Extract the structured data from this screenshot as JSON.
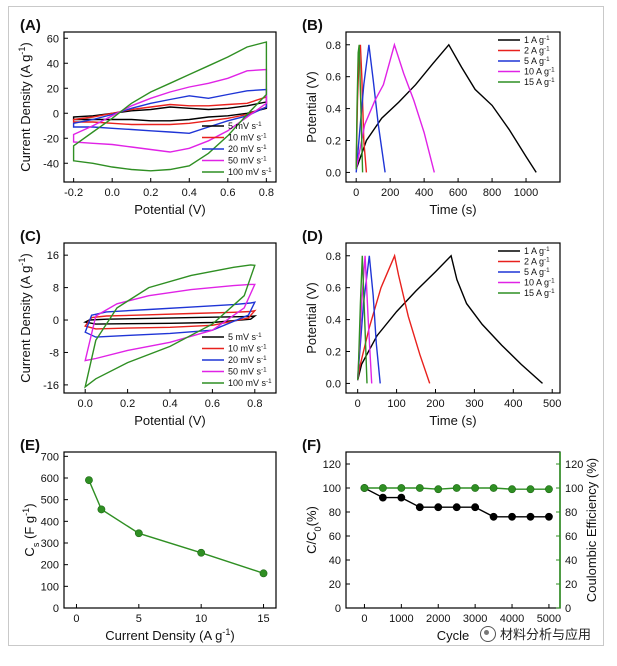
{
  "watermark": "材料分析与应用",
  "chart_data": [
    {
      "id": "A",
      "panel_label": "(A)",
      "type": "line",
      "subtype": "cv",
      "xlabel": "Potential (V)",
      "ylabel": "Current Density (A g-1)",
      "xlim": [
        -0.25,
        0.85
      ],
      "ylim": [
        -55,
        65
      ],
      "xticks": [
        -0.2,
        0.0,
        0.2,
        0.4,
        0.6,
        0.8
      ],
      "yticks": [
        -40,
        -20,
        0,
        20,
        40,
        60
      ],
      "xtick_labels": [
        "-0.2",
        "0.0",
        "0.2",
        "0.4",
        "0.6",
        "0.8"
      ],
      "ytick_labels": [
        "-40",
        "-20",
        "0",
        "20",
        "40",
        "60"
      ],
      "legend": [
        {
          "label": "5 mV s-1",
          "color": "#000000"
        },
        {
          "label": "10 mV s-1",
          "color": "#e8211d"
        },
        {
          "label": "20 mV s-1",
          "color": "#1f35d6"
        },
        {
          "label": "50 mV s-1",
          "color": "#e023e6"
        },
        {
          "label": "100 mV s-1",
          "color": "#2f8f23"
        }
      ],
      "series": [
        {
          "name": "5 mV s-1",
          "color": "#000000",
          "x": [
            -0.2,
            -0.1,
            0.0,
            0.1,
            0.2,
            0.3,
            0.4,
            0.5,
            0.6,
            0.7,
            0.8,
            0.8,
            0.7,
            0.6,
            0.5,
            0.4,
            0.3,
            0.2,
            0.1,
            0.0,
            -0.1,
            -0.2
          ],
          "y": [
            -3,
            -2,
            0,
            2,
            3,
            5,
            4,
            3,
            4,
            6,
            9,
            4,
            0,
            -2,
            -3,
            -5,
            -6,
            -6,
            -5,
            -5,
            -5,
            -5
          ]
        },
        {
          "name": "10 mV s-1",
          "color": "#e8211d",
          "x": [
            -0.2,
            -0.1,
            0.0,
            0.1,
            0.2,
            0.3,
            0.4,
            0.5,
            0.6,
            0.7,
            0.8,
            0.8,
            0.7,
            0.6,
            0.5,
            0.4,
            0.3,
            0.2,
            0.1,
            0.0,
            -0.1,
            -0.2
          ],
          "y": [
            -5,
            -3,
            0,
            3,
            5,
            7,
            6,
            6,
            7,
            8,
            13,
            5,
            -1,
            -4,
            -6,
            -8,
            -9,
            -9,
            -9,
            -8,
            -7,
            -7
          ]
        },
        {
          "name": "20 mV s-1",
          "color": "#1f35d6",
          "x": [
            -0.2,
            -0.1,
            0.0,
            0.1,
            0.2,
            0.3,
            0.4,
            0.5,
            0.6,
            0.7,
            0.8,
            0.8,
            0.7,
            0.6,
            0.5,
            0.4,
            0.3,
            0.2,
            0.1,
            0.0,
            -0.1,
            -0.2
          ],
          "y": [
            -8,
            -5,
            -1,
            4,
            8,
            11,
            14,
            12,
            15,
            18,
            19,
            5,
            -2,
            -6,
            -11,
            -16,
            -15,
            -14,
            -13,
            -12,
            -11,
            -11
          ]
        },
        {
          "name": "50 mV s-1",
          "color": "#e023e6",
          "x": [
            -0.2,
            -0.1,
            0.0,
            0.1,
            0.2,
            0.3,
            0.4,
            0.5,
            0.6,
            0.7,
            0.8,
            0.8,
            0.7,
            0.6,
            0.5,
            0.4,
            0.3,
            0.2,
            0.1,
            0.0,
            -0.1,
            -0.2
          ],
          "y": [
            -17,
            -10,
            -2,
            6,
            12,
            17,
            21,
            24,
            28,
            34,
            35,
            8,
            -3,
            -14,
            -22,
            -28,
            -31,
            -29,
            -27,
            -25,
            -24,
            -23
          ]
        },
        {
          "name": "100 mV s-1",
          "color": "#2f8f23",
          "x": [
            -0.2,
            -0.1,
            0.0,
            0.1,
            0.2,
            0.3,
            0.4,
            0.5,
            0.6,
            0.7,
            0.8,
            0.8,
            0.7,
            0.6,
            0.5,
            0.4,
            0.3,
            0.2,
            0.1,
            0.0,
            -0.1,
            -0.2
          ],
          "y": [
            -26,
            -15,
            -4,
            8,
            17,
            24,
            31,
            38,
            45,
            53,
            57,
            15,
            -1,
            -18,
            -32,
            -42,
            -45,
            -46,
            -45,
            -43,
            -40,
            -38
          ]
        }
      ]
    },
    {
      "id": "B",
      "panel_label": "(B)",
      "type": "line",
      "subtype": "gcd",
      "xlabel": "Time (s)",
      "ylabel": "Potential (V)",
      "xlim": [
        -60,
        1200
      ],
      "ylim": [
        -0.06,
        0.88
      ],
      "xticks": [
        0,
        200,
        400,
        600,
        800,
        1000
      ],
      "yticks": [
        0.0,
        0.2,
        0.4,
        0.6,
        0.8
      ],
      "xtick_labels": [
        "0",
        "200",
        "400",
        "600",
        "800",
        "1000"
      ],
      "ytick_labels": [
        "0.0",
        "0.2",
        "0.4",
        "0.6",
        "0.8"
      ],
      "legend": [
        {
          "label": "1 A g-1",
          "color": "#000000"
        },
        {
          "label": "2 A g-1",
          "color": "#e8211d"
        },
        {
          "label": "5 A g-1",
          "color": "#1f35d6"
        },
        {
          "label": "10 A g-1",
          "color": "#e023e6"
        },
        {
          "label": "15 A g-1",
          "color": "#2f8f23"
        }
      ],
      "series": [
        {
          "name": "1 A g-1",
          "color": "#000000",
          "x": [
            0,
            60,
            150,
            250,
            350,
            450,
            545,
            620,
            700,
            800,
            900,
            1000,
            1060
          ],
          "y": [
            0.02,
            0.2,
            0.34,
            0.44,
            0.55,
            0.68,
            0.8,
            0.66,
            0.52,
            0.42,
            0.27,
            0.1,
            0.0
          ]
        },
        {
          "name": "2 A g-1",
          "color": "#e8211d",
          "x": [
            0,
            8,
            18,
            25,
            33,
            45,
            60
          ],
          "y": [
            0.02,
            0.45,
            0.75,
            0.8,
            0.6,
            0.2,
            0.0
          ]
        },
        {
          "name": "5 A g-1",
          "color": "#1f35d6",
          "x": [
            0,
            20,
            45,
            75,
            100,
            130,
            170
          ],
          "y": [
            0.0,
            0.25,
            0.55,
            0.8,
            0.58,
            0.3,
            0.0
          ]
        },
        {
          "name": "10 A g-1",
          "color": "#e023e6",
          "x": [
            0,
            50,
            110,
            160,
            225,
            280,
            340,
            400,
            460
          ],
          "y": [
            0.02,
            0.3,
            0.45,
            0.55,
            0.8,
            0.62,
            0.45,
            0.25,
            0.0
          ]
        },
        {
          "name": "15 A g-1",
          "color": "#2f8f23",
          "x": [
            0,
            5,
            12,
            18,
            28,
            38
          ],
          "y": [
            0.02,
            0.4,
            0.75,
            0.8,
            0.4,
            0.0
          ]
        }
      ]
    },
    {
      "id": "C",
      "panel_label": "(C)",
      "type": "line",
      "subtype": "cv",
      "xlabel": "Potential (V)",
      "ylabel": "Current Density (A g-1)",
      "xlim": [
        -0.1,
        0.9
      ],
      "ylim": [
        -18,
        19
      ],
      "xticks": [
        0.0,
        0.2,
        0.4,
        0.6,
        0.8
      ],
      "yticks": [
        -16,
        -8,
        0,
        8,
        16
      ],
      "xtick_labels": [
        "0.0",
        "0.2",
        "0.4",
        "0.6",
        "0.8"
      ],
      "ytick_labels": [
        "-16",
        "-8",
        "0",
        "8",
        "16"
      ],
      "legend": [
        {
          "label": "5 mV s-1",
          "color": "#000000"
        },
        {
          "label": "10 mV s-1",
          "color": "#e8211d"
        },
        {
          "label": "20 mV s-1",
          "color": "#1f35d6"
        },
        {
          "label": "50 mV s-1",
          "color": "#e023e6"
        },
        {
          "label": "100 mV s-1",
          "color": "#2f8f23"
        }
      ],
      "series": [
        {
          "name": "5 mV s-1",
          "color": "#000000",
          "x": [
            0.0,
            0.02,
            0.1,
            0.3,
            0.5,
            0.7,
            0.78,
            0.8,
            0.78,
            0.6,
            0.4,
            0.2,
            0.05,
            0.0
          ],
          "y": [
            -0.5,
            0.0,
            0.2,
            0.4,
            0.6,
            0.8,
            0.9,
            1.0,
            0.2,
            -0.6,
            -0.8,
            -0.9,
            -1.0,
            -0.5
          ]
        },
        {
          "name": "10 mV s-1",
          "color": "#e8211d",
          "x": [
            0.0,
            0.03,
            0.1,
            0.3,
            0.5,
            0.7,
            0.78,
            0.8,
            0.77,
            0.6,
            0.4,
            0.2,
            0.05,
            0.0
          ],
          "y": [
            -1.5,
            0.6,
            1.0,
            1.3,
            1.6,
            1.9,
            2.1,
            2.3,
            0.5,
            -1.3,
            -1.8,
            -2.0,
            -2.2,
            -1.5
          ]
        },
        {
          "name": "20 mV s-1",
          "color": "#1f35d6",
          "x": [
            0.0,
            0.03,
            0.1,
            0.3,
            0.5,
            0.7,
            0.78,
            0.8,
            0.77,
            0.6,
            0.4,
            0.2,
            0.05,
            0.0
          ],
          "y": [
            -3.0,
            1.2,
            2.0,
            2.6,
            3.2,
            3.8,
            4.2,
            4.4,
            1.2,
            -2.5,
            -3.3,
            -3.8,
            -4.2,
            -3.0
          ]
        },
        {
          "name": "50 mV s-1",
          "color": "#e023e6",
          "x": [
            0.0,
            0.05,
            0.15,
            0.3,
            0.5,
            0.7,
            0.78,
            0.8,
            0.75,
            0.6,
            0.4,
            0.2,
            0.05,
            0.0
          ],
          "y": [
            -10.0,
            1.0,
            4.0,
            6.0,
            7.5,
            8.5,
            8.8,
            8.8,
            3.0,
            -2.5,
            -5.5,
            -7.5,
            -9.5,
            -10.0
          ]
        },
        {
          "name": "100 mV s-1",
          "color": "#2f8f23",
          "x": [
            0.0,
            0.05,
            0.15,
            0.3,
            0.5,
            0.7,
            0.78,
            0.8,
            0.75,
            0.6,
            0.4,
            0.2,
            0.05,
            0.0
          ],
          "y": [
            -16.5,
            -5.0,
            3.0,
            8.0,
            11.0,
            13.0,
            13.6,
            13.5,
            6.0,
            -1.0,
            -6.5,
            -10.5,
            -14.5,
            -16.5
          ]
        }
      ]
    },
    {
      "id": "D",
      "panel_label": "(D)",
      "type": "line",
      "subtype": "gcd",
      "xlabel": "Time (s)",
      "ylabel": "Potential (V)",
      "xlim": [
        -30,
        520
      ],
      "ylim": [
        -0.06,
        0.88
      ],
      "xticks": [
        0,
        100,
        200,
        300,
        400,
        500
      ],
      "yticks": [
        0.0,
        0.2,
        0.4,
        0.6,
        0.8
      ],
      "xtick_labels": [
        "0",
        "100",
        "200",
        "300",
        "400",
        "500"
      ],
      "ytick_labels": [
        "0.0",
        "0.2",
        "0.4",
        "0.6",
        "0.8"
      ],
      "legend": [
        {
          "label": "1 A g-1",
          "color": "#000000"
        },
        {
          "label": "2 A g-1",
          "color": "#e8211d"
        },
        {
          "label": "5 A g-1",
          "color": "#1f35d6"
        },
        {
          "label": "10 A g-1",
          "color": "#e023e6"
        },
        {
          "label": "15 A g-1",
          "color": "#2f8f23"
        }
      ],
      "series": [
        {
          "name": "1 A g-1",
          "color": "#000000",
          "x": [
            0,
            10,
            50,
            100,
            150,
            200,
            240,
            255,
            280,
            320,
            370,
            420,
            475
          ],
          "y": [
            0.02,
            0.12,
            0.3,
            0.45,
            0.58,
            0.7,
            0.8,
            0.65,
            0.5,
            0.37,
            0.24,
            0.12,
            0.0
          ]
        },
        {
          "name": "2 A g-1",
          "color": "#e8211d",
          "x": [
            0,
            5,
            30,
            60,
            95,
            105,
            130,
            160,
            185
          ],
          "y": [
            0.02,
            0.1,
            0.35,
            0.6,
            0.8,
            0.68,
            0.42,
            0.18,
            0.0
          ]
        },
        {
          "name": "5 A g-1",
          "color": "#1f35d6",
          "x": [
            0,
            3,
            15,
            30,
            40,
            48,
            58
          ],
          "y": [
            0.02,
            0.12,
            0.5,
            0.8,
            0.55,
            0.25,
            0.0
          ]
        },
        {
          "name": "10 A g-1",
          "color": "#e023e6",
          "x": [
            0,
            2,
            10,
            19,
            27,
            36
          ],
          "y": [
            0.02,
            0.12,
            0.5,
            0.8,
            0.4,
            0.0
          ]
        },
        {
          "name": "15 A g-1",
          "color": "#2f8f23",
          "x": [
            0,
            2,
            7,
            12,
            18,
            24
          ],
          "y": [
            0.02,
            0.12,
            0.5,
            0.8,
            0.4,
            0.0
          ]
        }
      ]
    },
    {
      "id": "E",
      "panel_label": "(E)",
      "type": "line",
      "subtype": "markers",
      "xlabel": "Current Density (A g-1)",
      "ylabel": "Cs (F g-1)",
      "xlim": [
        -1,
        16
      ],
      "ylim": [
        0,
        720
      ],
      "xticks": [
        0,
        5,
        10,
        15
      ],
      "yticks": [
        0,
        100,
        200,
        300,
        400,
        500,
        600,
        700
      ],
      "xtick_labels": [
        "0",
        "5",
        "10",
        "15"
      ],
      "ytick_labels": [
        "0",
        "100",
        "200",
        "300",
        "400",
        "500",
        "600",
        "700"
      ],
      "series": [
        {
          "name": "Cs",
          "color": "#2f8f23",
          "x": [
            1,
            2,
            5,
            10,
            15
          ],
          "y": [
            590,
            455,
            345,
            255,
            160
          ]
        }
      ]
    },
    {
      "id": "F",
      "panel_label": "(F)",
      "type": "line",
      "subtype": "dual",
      "xlabel": "Cycle",
      "ylabel": "C/C0(%)",
      "ylabel_right": "Coulombic Efficiency (%)",
      "xlim": [
        -500,
        5300
      ],
      "ylim": [
        0,
        130
      ],
      "xticks": [
        0,
        1000,
        2000,
        3000,
        4000,
        5000
      ],
      "yticks": [
        0,
        20,
        40,
        60,
        80,
        100,
        120
      ],
      "xtick_labels": [
        "0",
        "1000",
        "2000",
        "3000",
        "4000",
        "5000"
      ],
      "ytick_labels": [
        "0",
        "20",
        "40",
        "60",
        "80",
        "100",
        "120"
      ],
      "right_color": "#2f8f23",
      "series": [
        {
          "name": "C/C0",
          "color": "#000000",
          "x": [
            0,
            500,
            1000,
            1500,
            2000,
            2500,
            3000,
            3500,
            4000,
            4500,
            5000
          ],
          "y": [
            100,
            92,
            92,
            84,
            84,
            84,
            84,
            76,
            76,
            76,
            76
          ]
        },
        {
          "name": "Coulombic Efficiency",
          "color": "#2f8f23",
          "x": [
            0,
            500,
            1000,
            1500,
            2000,
            2500,
            3000,
            3500,
            4000,
            4500,
            5000
          ],
          "y": [
            100,
            100,
            100,
            100,
            99,
            100,
            100,
            100,
            99,
            99,
            99
          ]
        }
      ]
    }
  ]
}
